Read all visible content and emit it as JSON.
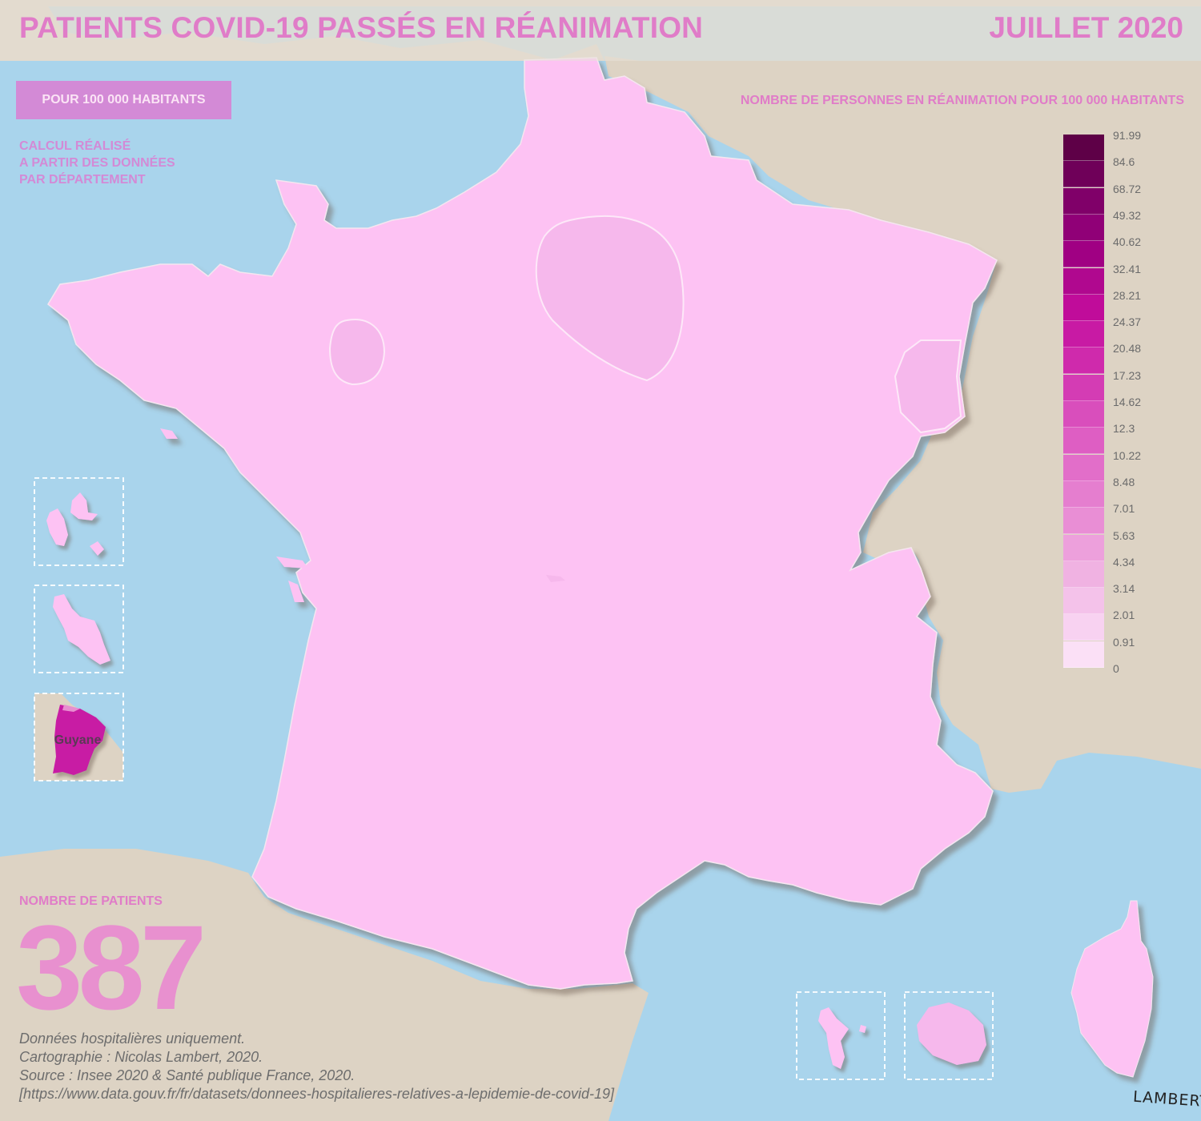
{
  "header": {
    "title": "PATIENTS COVID-19 PASSÉS EN RÉANIMATION",
    "date": "JUILLET 2020"
  },
  "controls": {
    "mode_button": "POUR 100 000 HABITANTS"
  },
  "calculation_note": [
    "CALCUL RÉALISÉ",
    "A PARTIR DES DONNÉES",
    "PAR DÉPARTEMENT"
  ],
  "legend": {
    "title": "NOMBRE DE PERSONNES EN RÉANIMATION POUR 100 000 HABITANTS",
    "breaks": [
      "91.99",
      "84.6",
      "68.72",
      "49.32",
      "40.62",
      "32.41",
      "28.21",
      "24.37",
      "20.48",
      "17.23",
      "14.62",
      "12.3",
      "10.22",
      "8.48",
      "7.01",
      "5.63",
      "4.34",
      "3.14",
      "2.01",
      "0.91",
      "0"
    ],
    "colors": [
      "#5e0047",
      "#6f0059",
      "#800069",
      "#900077",
      "#a00083",
      "#b0088f",
      "#c00c9a",
      "#c81aa4",
      "#cf2aac",
      "#d43cb4",
      "#d94ebc",
      "#de5ec3",
      "#e26ec9",
      "#e57ecf",
      "#e98ed5",
      "#eda0dc",
      "#f0b2e2",
      "#f4c2ea",
      "#f8d2f1",
      "#fbe0f6"
    ]
  },
  "map": {
    "colors": {
      "sea": "#a9d4ec",
      "land_neighbors": "#ddd3c4",
      "france_base": "#fdc2f3",
      "zone_light": "#f6b8ec",
      "guyane": "#c81aa4"
    },
    "labels": {
      "guyane": "Guyane"
    }
  },
  "stats": {
    "patients_label": "NOMBRE DE PATIENTS",
    "patients_value": "387"
  },
  "notes": [
    "Données hospitalières uniquement.",
    "Cartographie : Nicolas Lambert, 2020.",
    "Source : Insee 2020 & Santé publique France, 2020.",
    "[https://www.data.gouv.fr/fr/datasets/donnees-hospitalieres-relatives-a-lepidemie-de-covid-19]"
  ],
  "signature": "LAMBERT"
}
